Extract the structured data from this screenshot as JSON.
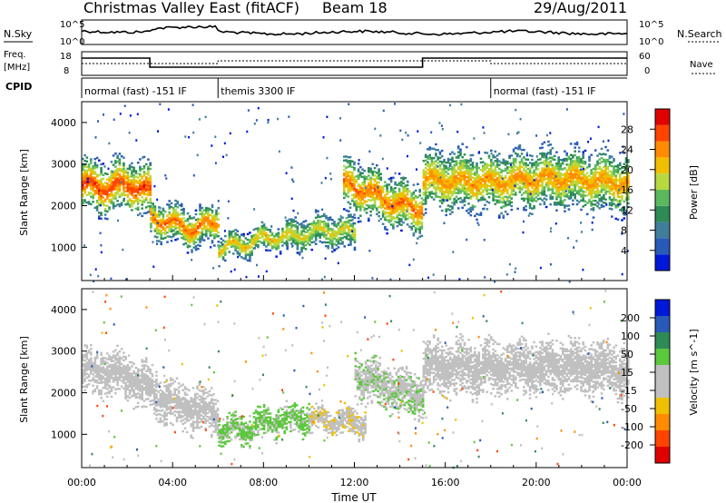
{
  "header": {
    "title": "Christmas Valley East (fitACF)",
    "beam": "Beam 18",
    "date": "29/Aug/2011"
  },
  "aux": {
    "nsky_label": "N.Sky",
    "nsky_ticks": [
      "10^5",
      "10^0"
    ],
    "nsearch_label": "N.Search",
    "nsearch_ticks": [
      "10^5",
      "10^0"
    ],
    "freq_label": "Freq.",
    "freq_unit": "[MHz]",
    "freq_ticks": [
      "18",
      "8"
    ],
    "nave_label": "Nave",
    "nave_ticks": [
      "60",
      "0"
    ],
    "cpid_label": "CPID",
    "cpid_segments": [
      {
        "label": "normal (fast) -151 IF",
        "start_hour": 0,
        "end_hour": 6
      },
      {
        "label": "themis 3300 IF",
        "start_hour": 6,
        "end_hour": 18
      },
      {
        "label": "normal (fast) -151 IF",
        "start_hour": 18,
        "end_hour": 24
      }
    ]
  },
  "colors": {
    "power": [
      "#0018d8",
      "#2a5ab8",
      "#3f7f9c",
      "#2e8b57",
      "#5cb85c",
      "#b8d840",
      "#f0c000",
      "#ff8c00",
      "#ff4400",
      "#e00000"
    ],
    "velocity": [
      "#e00000",
      "#ff4400",
      "#ff8c00",
      "#f0c000",
      "#c0c0c0",
      "#c0c0c0",
      "#5cc83c",
      "#2e8b57",
      "#2a5ab8",
      "#0018d8"
    ]
  },
  "chart_data": [
    {
      "type": "heatmap",
      "quantity": "Power",
      "xlabel": "Time UT",
      "ylabel": "Slant Range [km]",
      "xlim": [
        0,
        24
      ],
      "ylim": [
        200,
        4500
      ],
      "xticks": [
        "00:00",
        "04:00",
        "08:00",
        "12:00",
        "16:00",
        "20:00",
        "00:00"
      ],
      "yticks": [
        1000,
        2000,
        3000,
        4000
      ],
      "colorbar": {
        "label": "Power [dB]",
        "range": [
          0,
          32
        ],
        "ticks": [
          4,
          8,
          12,
          16,
          20,
          24,
          28
        ]
      },
      "echo_bands": [
        {
          "start_hour": 0.0,
          "end_hour": 3.0,
          "center_km": [
            2500,
            2400,
            2500,
            2300
          ],
          "width_km": 700,
          "core_db": 28
        },
        {
          "start_hour": 3.0,
          "end_hour": 6.0,
          "center_km": [
            1700,
            1550,
            1400,
            1650
          ],
          "width_km": 500,
          "core_db": 26
        },
        {
          "start_hour": 6.0,
          "end_hour": 9.0,
          "center_km": [
            950,
            1050,
            1200,
            1250
          ],
          "width_km": 350,
          "core_db": 22
        },
        {
          "start_hour": 9.0,
          "end_hour": 12.0,
          "center_km": [
            1200,
            1350,
            1400,
            1300
          ],
          "width_km": 450,
          "core_db": 20
        },
        {
          "start_hour": 11.5,
          "end_hour": 15.0,
          "center_km": [
            2500,
            2300,
            2000,
            1900
          ],
          "width_km": 700,
          "core_db": 26
        },
        {
          "start_hour": 15.0,
          "end_hour": 24.0,
          "center_km": [
            2600,
            2550,
            2650,
            2500
          ],
          "width_km": 800,
          "core_db": 24
        }
      ]
    },
    {
      "type": "heatmap",
      "quantity": "Velocity",
      "xlabel": "Time UT",
      "ylabel": "Slant Range [km]",
      "xlim": [
        0,
        24
      ],
      "ylim": [
        200,
        4500
      ],
      "xticks": [
        "00:00",
        "04:00",
        "08:00",
        "12:00",
        "16:00",
        "20:00",
        "00:00"
      ],
      "yticks": [
        1000,
        2000,
        3000,
        4000
      ],
      "colorbar": {
        "label": "Velocity [m s^-1]",
        "range": [
          -250,
          250
        ],
        "ticks": [
          200,
          100,
          50,
          15,
          -15,
          -50,
          -100,
          -200
        ]
      },
      "echo_bands": [
        {
          "start_hour": 0.0,
          "end_hour": 6.0,
          "center_km": [
            2500,
            2400,
            1700,
            1500
          ],
          "width_km": 600,
          "velocity": 0
        },
        {
          "start_hour": 6.0,
          "end_hour": 10.0,
          "center_km": [
            1050,
            1150,
            1300,
            1400
          ],
          "width_km": 400,
          "velocity": 60
        },
        {
          "start_hour": 10.0,
          "end_hour": 12.5,
          "center_km": [
            1350,
            1300,
            1300,
            1250
          ],
          "width_km": 350,
          "velocity": -40
        },
        {
          "start_hour": 12.0,
          "end_hour": 15.0,
          "center_km": [
            2400,
            2200,
            2000,
            1900
          ],
          "width_km": 600,
          "velocity": 40
        },
        {
          "start_hour": 15.0,
          "end_hour": 24.0,
          "center_km": [
            2600,
            2550,
            2650,
            2500
          ],
          "width_km": 700,
          "velocity": 0
        }
      ]
    }
  ]
}
